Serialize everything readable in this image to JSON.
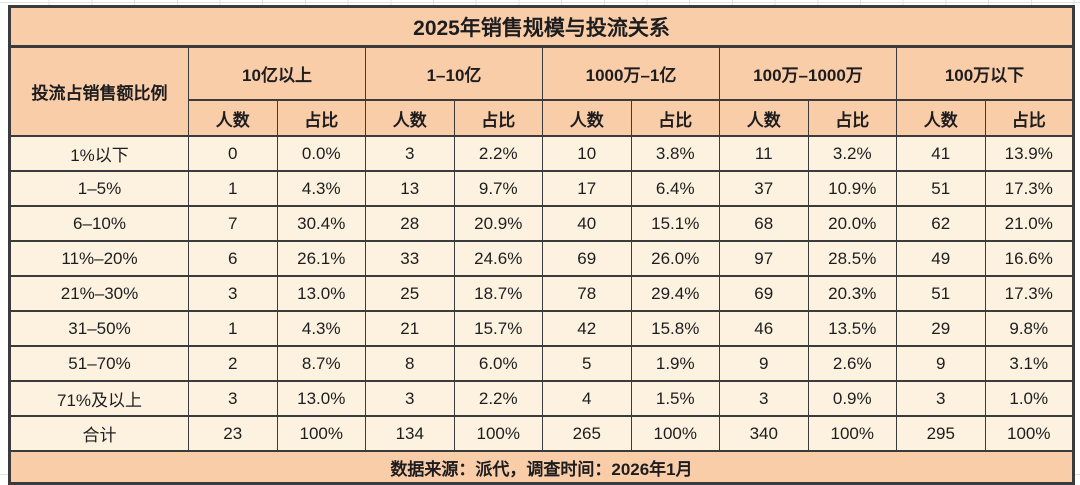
{
  "colors": {
    "header_bg": "#FACDA9",
    "cell_bg": "#FCF2DF",
    "border": "#3B3B3B",
    "margin_gridline": "#DFE3E0",
    "text": "#1D1D1F"
  },
  "table": {
    "title": "2025年销售规模与投流关系",
    "corner_header": "投流占销售额比例",
    "groups": [
      "10亿以上",
      "1–10亿",
      "1000万–1亿",
      "100万–1000万",
      "100万以下"
    ],
    "sub_headers": [
      "人数",
      "占比"
    ],
    "rows": [
      {
        "label": "1%以下",
        "cells": [
          "0",
          "0.0%",
          "3",
          "2.2%",
          "10",
          "3.8%",
          "11",
          "3.2%",
          "41",
          "13.9%"
        ]
      },
      {
        "label": "1–5%",
        "cells": [
          "1",
          "4.3%",
          "13",
          "9.7%",
          "17",
          "6.4%",
          "37",
          "10.9%",
          "51",
          "17.3%"
        ]
      },
      {
        "label": "6–10%",
        "cells": [
          "7",
          "30.4%",
          "28",
          "20.9%",
          "40",
          "15.1%",
          "68",
          "20.0%",
          "62",
          "21.0%"
        ]
      },
      {
        "label": "11%–20%",
        "cells": [
          "6",
          "26.1%",
          "33",
          "24.6%",
          "69",
          "26.0%",
          "97",
          "28.5%",
          "49",
          "16.6%"
        ]
      },
      {
        "label": "21%–30%",
        "cells": [
          "3",
          "13.0%",
          "25",
          "18.7%",
          "78",
          "29.4%",
          "69",
          "20.3%",
          "51",
          "17.3%"
        ]
      },
      {
        "label": "31–50%",
        "cells": [
          "1",
          "4.3%",
          "21",
          "15.7%",
          "42",
          "15.8%",
          "46",
          "13.5%",
          "29",
          "9.8%"
        ]
      },
      {
        "label": "51–70%",
        "cells": [
          "2",
          "8.7%",
          "8",
          "6.0%",
          "5",
          "1.9%",
          "9",
          "2.6%",
          "9",
          "3.1%"
        ]
      },
      {
        "label": "71%及以上",
        "cells": [
          "3",
          "13.0%",
          "3",
          "2.2%",
          "4",
          "1.5%",
          "3",
          "0.9%",
          "3",
          "1.0%"
        ]
      },
      {
        "label": "合计",
        "cells": [
          "23",
          "100%",
          "134",
          "100%",
          "265",
          "100%",
          "340",
          "100%",
          "295",
          "100%"
        ]
      }
    ],
    "footer": "数据来源：派代，调查时间：2026年1月"
  },
  "chart_data": {
    "type": "table",
    "title": "2025年销售规模与投流关系",
    "row_axis_label": "投流占销售额比例",
    "column_groups": [
      "10亿以上",
      "1–10亿",
      "1000万–1亿",
      "100万–1000万",
      "100万以下"
    ],
    "sub_columns": [
      "人数",
      "占比"
    ],
    "row_labels": [
      "1%以下",
      "1–5%",
      "6–10%",
      "11%–20%",
      "21%–30%",
      "31–50%",
      "51–70%",
      "71%及以上",
      "合计"
    ],
    "series": [
      {
        "name": "10亿以上",
        "counts": [
          0,
          1,
          7,
          6,
          3,
          1,
          2,
          3,
          23
        ],
        "shares": [
          "0.0%",
          "4.3%",
          "30.4%",
          "26.1%",
          "13.0%",
          "4.3%",
          "8.7%",
          "13.0%",
          "100%"
        ]
      },
      {
        "name": "1–10亿",
        "counts": [
          3,
          13,
          28,
          33,
          25,
          21,
          8,
          3,
          134
        ],
        "shares": [
          "2.2%",
          "9.7%",
          "20.9%",
          "24.6%",
          "18.7%",
          "15.7%",
          "6.0%",
          "2.2%",
          "100%"
        ]
      },
      {
        "name": "1000万–1亿",
        "counts": [
          10,
          17,
          40,
          69,
          78,
          42,
          5,
          4,
          265
        ],
        "shares": [
          "3.8%",
          "6.4%",
          "15.1%",
          "26.0%",
          "29.4%",
          "15.8%",
          "1.9%",
          "1.5%",
          "100%"
        ]
      },
      {
        "name": "100万–1000万",
        "counts": [
          11,
          37,
          68,
          97,
          69,
          46,
          9,
          3,
          340
        ],
        "shares": [
          "3.2%",
          "10.9%",
          "20.0%",
          "28.5%",
          "20.3%",
          "13.5%",
          "2.6%",
          "0.9%",
          "100%"
        ]
      },
      {
        "name": "100万以下",
        "counts": [
          41,
          51,
          62,
          49,
          51,
          29,
          9,
          3,
          295
        ],
        "shares": [
          "13.9%",
          "17.3%",
          "21.0%",
          "16.6%",
          "17.3%",
          "9.8%",
          "3.1%",
          "1.0%",
          "100%"
        ]
      }
    ],
    "source_note": "数据来源：派代，调查时间：2026年1月"
  }
}
